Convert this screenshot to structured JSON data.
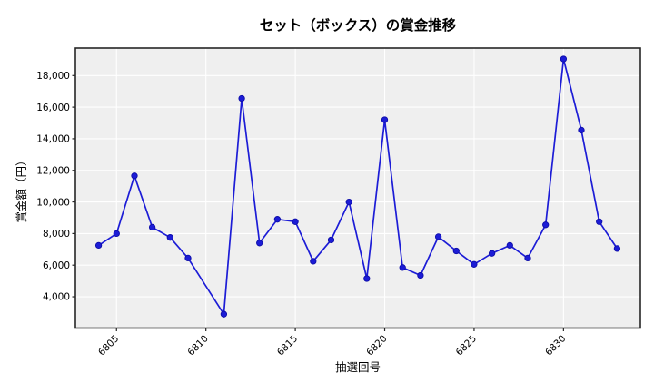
{
  "chart_data": {
    "type": "line",
    "title": "セット（ボックス）の賞金推移",
    "xlabel": "抽選回号",
    "ylabel": "賞金額（円）",
    "x": [
      6804,
      6805,
      6806,
      6807,
      6808,
      6809,
      6811,
      6812,
      6813,
      6814,
      6815,
      6816,
      6817,
      6818,
      6819,
      6820,
      6821,
      6822,
      6823,
      6824,
      6825,
      6826,
      6827,
      6828,
      6829,
      6830,
      6831,
      6832,
      6833
    ],
    "y": [
      7250,
      8000,
      11650,
      8400,
      7750,
      6450,
      2900,
      16550,
      7400,
      8900,
      8750,
      6250,
      7600,
      10000,
      5150,
      15200,
      5850,
      5350,
      7800,
      6900,
      6050,
      6750,
      7250,
      6450,
      8550,
      19050,
      14550,
      8750,
      7050
    ],
    "xticks": [
      6805,
      6810,
      6815,
      6820,
      6825,
      6830
    ],
    "yticks": [
      4000,
      6000,
      8000,
      10000,
      12000,
      14000,
      16000,
      18000
    ],
    "xlim": [
      6802.7,
      6834.3
    ],
    "ylim": [
      2020,
      19740
    ],
    "grid": true,
    "legend": "none",
    "colors": {
      "line": "#1c1cd6",
      "marker_fill": "#1c1cd6",
      "marker_edge": "#0d0da8",
      "plot_background": "#efefef",
      "gridline": "#ffffff",
      "border": "#262626",
      "figure_background": "#ffffff",
      "text": "#000000"
    }
  }
}
